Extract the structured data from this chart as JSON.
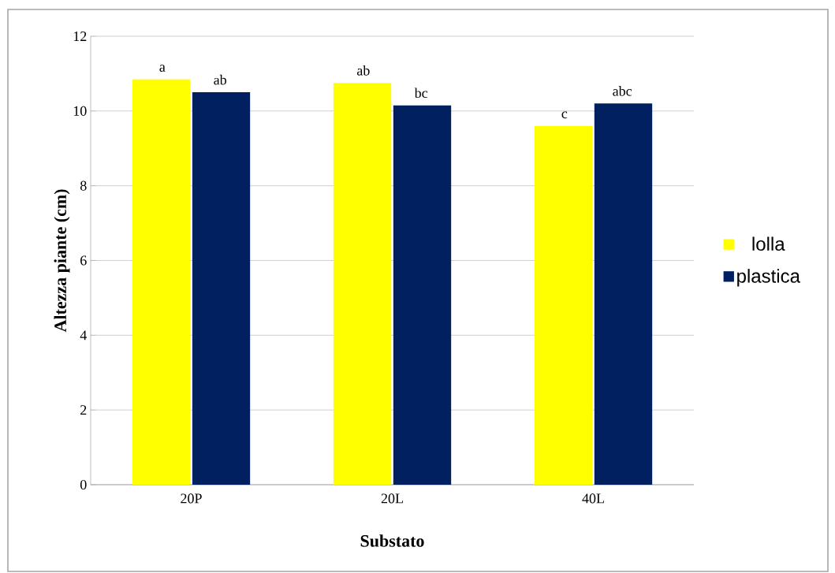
{
  "chart_data": {
    "type": "bar",
    "xlabel": "Substato",
    "ylabel": "Altezza piante (cm)",
    "categories": [
      "20P",
      "20L",
      "40L"
    ],
    "series": [
      {
        "name": "lolla",
        "color": "#ffff00",
        "values": [
          10.85,
          10.75,
          9.6
        ],
        "value_labels": [
          "a",
          "ab",
          "c"
        ]
      },
      {
        "name": "plastica",
        "color": "#002060",
        "values": [
          10.5,
          10.15,
          10.2
        ],
        "value_labels": [
          "ab",
          "bc",
          "abc"
        ]
      }
    ],
    "ylim": [
      0,
      12
    ],
    "yticks": [
      0,
      2,
      4,
      6,
      8,
      10,
      12
    ],
    "grid": "y",
    "legend": "right"
  }
}
